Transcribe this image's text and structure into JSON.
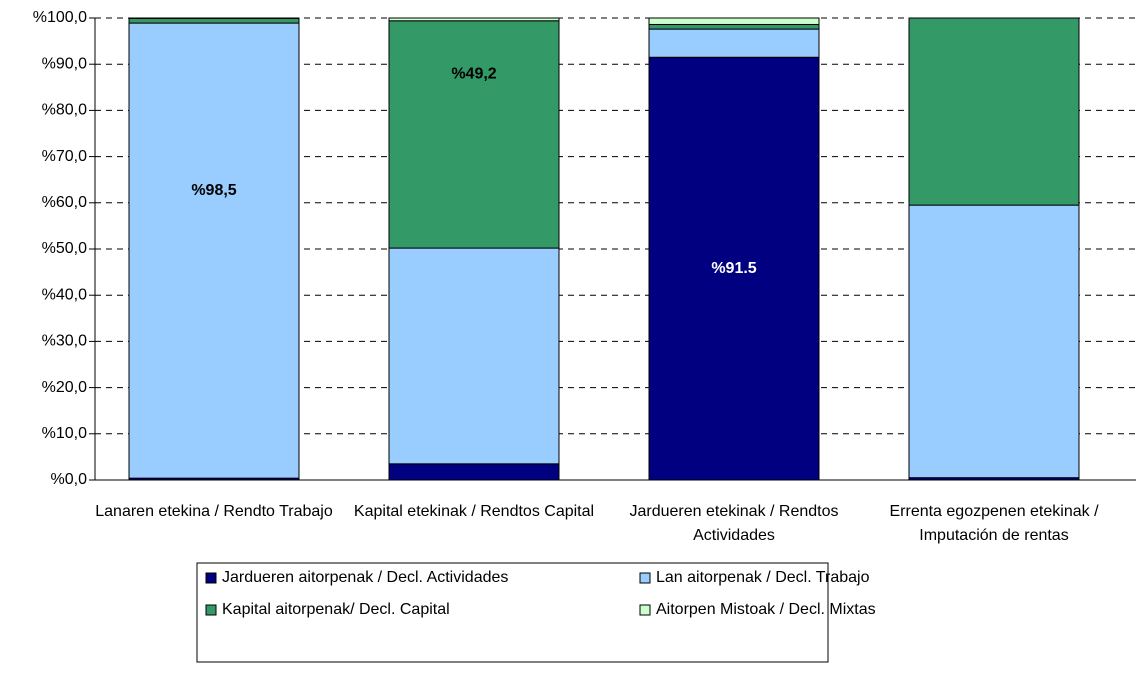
{
  "chart_data": {
    "type": "stacked_bar",
    "categories": [
      "Lanaren etekina / Rendto Trabajo",
      "Kapital etekinak / Rendtos Capital",
      "Jardueren etekinak / Rendtos Actividades",
      "Errenta egozpenen etekinak / Imputación de rentas"
    ],
    "series": [
      {
        "name": "Jardueren aitorpenak / Decl. Actividades",
        "color": "#000080",
        "values": [
          0.4,
          3.5,
          91.5,
          0.5
        ],
        "value_labels": [
          null,
          null,
          "%91.5",
          null
        ]
      },
      {
        "name": "Lan aitorpenak / Decl. Trabajo",
        "color": "#99ccff",
        "values": [
          98.5,
          46.7,
          6.1,
          59.0
        ],
        "value_labels": [
          "%98,5",
          null,
          null,
          null
        ]
      },
      {
        "name": "Kapital aitorpenak/ Decl. Capital",
        "color": "#339966",
        "values": [
          1.0,
          49.2,
          1.0,
          40.5
        ],
        "value_labels": [
          null,
          "%49,2",
          null,
          null
        ]
      },
      {
        "name": "Aitorpen Mistoak / Decl. Mixtas",
        "color": "#ccffcc",
        "values": [
          0.1,
          0.6,
          1.4,
          0.0
        ],
        "value_labels": [
          null,
          null,
          null,
          null
        ]
      }
    ],
    "ylim": [
      0,
      100
    ],
    "yticks": [
      {
        "value": 0,
        "label": "%0,0"
      },
      {
        "value": 10,
        "label": "%10,0"
      },
      {
        "value": 20,
        "label": "%20,0"
      },
      {
        "value": 30,
        "label": "%30,0"
      },
      {
        "value": 40,
        "label": "%40,0"
      },
      {
        "value": 50,
        "label": "%50,0"
      },
      {
        "value": 60,
        "label": "%60,0"
      },
      {
        "value": 70,
        "label": "%70,0"
      },
      {
        "value": 80,
        "label": "%80,0"
      },
      {
        "value": 90,
        "label": "%90,0"
      },
      {
        "value": 100,
        "label": "%100,0"
      }
    ],
    "grid": true
  }
}
